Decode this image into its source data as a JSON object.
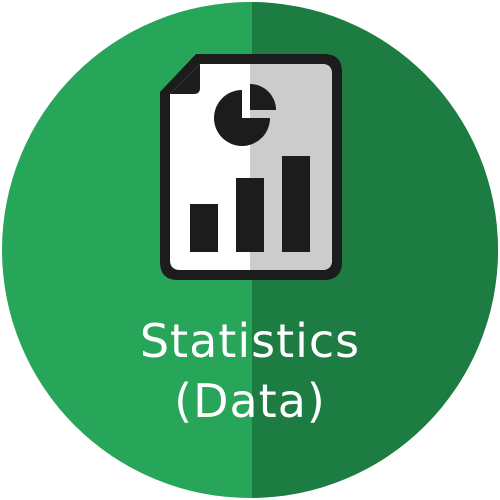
{
  "badge": {
    "caption_line_1": "Statistics",
    "caption_line_2": "(Data)",
    "icon": "statistics-document-icon",
    "colors": {
      "circle_light": "#27a558",
      "circle_dark": "#1d7c42",
      "icon_outline": "#1c1c1c",
      "icon_paper_light": "#ffffff",
      "icon_paper_dark": "#cccccc",
      "text": "#ffffff"
    }
  }
}
